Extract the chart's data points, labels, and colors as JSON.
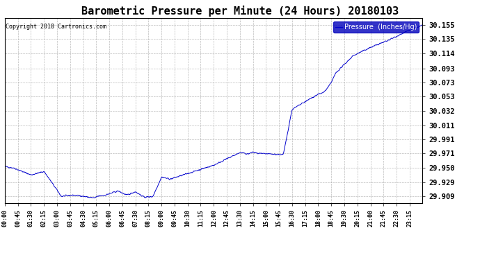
{
  "title": "Barometric Pressure per Minute (24 Hours) 20180103",
  "copyright": "Copyright 2018 Cartronics.com",
  "legend_label": "Pressure  (Inches/Hg)",
  "yticks": [
    29.909,
    29.929,
    29.95,
    29.971,
    29.991,
    30.011,
    30.032,
    30.053,
    30.073,
    30.093,
    30.114,
    30.135,
    30.155
  ],
  "ylim": [
    29.9,
    30.165
  ],
  "xtick_labels": [
    "00:00",
    "00:45",
    "01:30",
    "02:15",
    "03:00",
    "03:45",
    "04:30",
    "05:15",
    "06:00",
    "06:45",
    "07:30",
    "08:15",
    "09:00",
    "09:45",
    "10:30",
    "11:15",
    "12:00",
    "12:45",
    "13:30",
    "14:15",
    "15:00",
    "15:45",
    "16:30",
    "17:15",
    "18:00",
    "18:45",
    "19:30",
    "20:15",
    "21:00",
    "21:45",
    "22:30",
    "23:15"
  ],
  "line_color": "#0000cc",
  "background_color": "#ffffff",
  "grid_color": "#aaaaaa",
  "title_fontsize": 11,
  "legend_bg": "#0000bb",
  "legend_fg": "#ffffff",
  "fig_width": 6.9,
  "fig_height": 3.75,
  "dpi": 100
}
